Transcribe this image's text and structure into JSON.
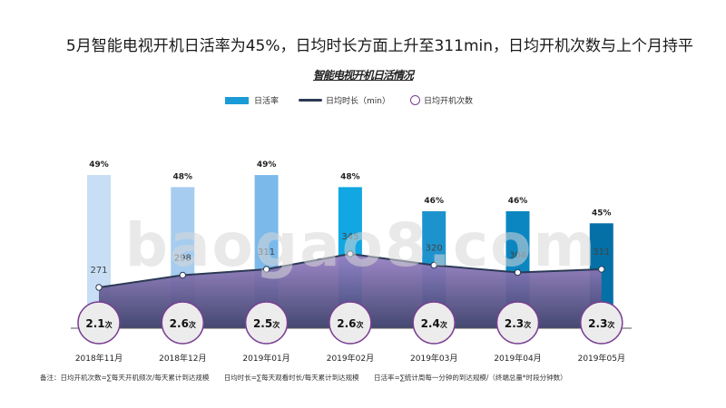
{
  "header": {
    "headline": "5月智能电视开机日活率为45%，日均时长方面上升至311min，日均开机次数与上个月持平",
    "subtitle": "智能电视开机日活情况"
  },
  "legend": {
    "bar_label": "日活率",
    "line_label": "日均时长（min）",
    "circle_label": "日均开机次数"
  },
  "watermark": "baogao8.com",
  "footnote": {
    "items": [
      "备注：日均开机次数=∑每天开机频次/每天累计到达规模",
      "日均时长=∑每天观看时长/每天累计到达规模",
      "日活率=∑统计周每一分钟的到达规模/（终端总量*时段分钟数）"
    ]
  },
  "chart_data": {
    "type": "bar",
    "categories": [
      "2018年11月",
      "2018年12月",
      "2019年01月",
      "2019年02月",
      "2019年03月",
      "2019年04月",
      "2019年05月"
    ],
    "series": [
      {
        "name": "日活率",
        "type": "bar",
        "values": [
          49,
          48,
          49,
          48,
          46,
          46,
          45
        ],
        "labels": [
          "49%",
          "48%",
          "49%",
          "48%",
          "46%",
          "46%",
          "45%"
        ],
        "colors": [
          "#c7def4",
          "#a6cdf0",
          "#7bb9ea",
          "#10a7e2",
          "#1d93ce",
          "#0b86c1",
          "#0570a6"
        ]
      },
      {
        "name": "日均时长（min）",
        "type": "area-line",
        "values": [
          271,
          298,
          311,
          345,
          320,
          304,
          311
        ],
        "labels": [
          "271",
          "298",
          "311",
          "345",
          "320",
          "304",
          "311"
        ]
      },
      {
        "name": "日均开机次数",
        "type": "circle-label",
        "values": [
          2.1,
          2.6,
          2.5,
          2.6,
          2.4,
          2.3,
          2.3
        ],
        "labels": [
          "2.1次",
          "2.6次",
          "2.5次",
          "2.6次",
          "2.4次",
          "2.3次",
          "2.3次"
        ]
      }
    ],
    "colors": {
      "line": "#2b3a55",
      "area_top": "#9a82c6",
      "area_bottom": "#3a3f6a",
      "circle_border": "#7a3f93"
    }
  }
}
